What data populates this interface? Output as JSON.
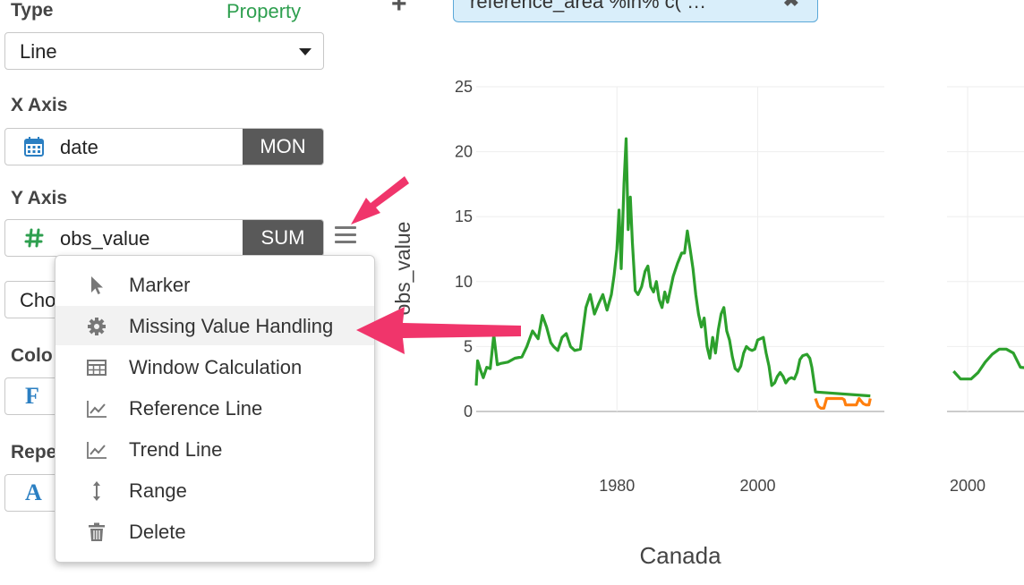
{
  "panel": {
    "type_label": "Type",
    "property_link": "Property",
    "type_value": "Line",
    "x_axis_label": "X Axis",
    "x_field": "date",
    "x_agg": "MON",
    "y_axis_label": "Y Axis",
    "y_field": "obs_value",
    "y_agg": "SUM",
    "hidden_select_text": "Cho",
    "color_label": "Colo",
    "repeat_label": "Repe"
  },
  "menu": {
    "items": [
      {
        "label": "Marker",
        "icon": "cursor-icon"
      },
      {
        "label": "Missing Value Handling",
        "icon": "gear-icon"
      },
      {
        "label": "Window Calculation",
        "icon": "table-icon"
      },
      {
        "label": "Reference Line",
        "icon": "chart-line-icon"
      },
      {
        "label": "Trend Line",
        "icon": "trend-line-icon"
      },
      {
        "label": "Range",
        "icon": "vertical-arrows-icon"
      },
      {
        "label": "Delete",
        "icon": "trash-icon"
      }
    ]
  },
  "filter_chip": {
    "text": "reference_area %in% c( …"
  },
  "colors": {
    "accent_green": "#2e9f4f",
    "series_green": "#2ca02c",
    "series_orange": "#ff7f0e",
    "callout_pink": "#f0356b",
    "agg_bg": "#595959"
  },
  "chart_data": {
    "type": "line",
    "ylabel": "obs_value",
    "facet_label": "Canada",
    "yticks": [
      0,
      5,
      10,
      15,
      20,
      25
    ],
    "xticks_left": [
      1980,
      2000
    ],
    "xticks_right": [
      2000
    ],
    "ylim": [
      0,
      25
    ],
    "xlim": [
      1960,
      2018
    ],
    "series": [
      {
        "color": "#2ca02c",
        "points": [
          [
            1960.0,
            2.0
          ],
          [
            1960.2,
            3.9
          ],
          [
            1960.6,
            3.2
          ],
          [
            1961.0,
            2.6
          ],
          [
            1961.5,
            3.4
          ],
          [
            1962.0,
            3.3
          ],
          [
            1962.5,
            5.9
          ],
          [
            1963.0,
            3.6
          ],
          [
            1963.5,
            3.7
          ],
          [
            1964.5,
            3.8
          ],
          [
            1965.5,
            4.1
          ],
          [
            1966.5,
            4.2
          ],
          [
            1967.2,
            5.0
          ],
          [
            1968.0,
            6.2
          ],
          [
            1968.8,
            5.6
          ],
          [
            1969.4,
            7.4
          ],
          [
            1970.0,
            6.5
          ],
          [
            1970.6,
            5.3
          ],
          [
            1971.0,
            5.0
          ],
          [
            1971.6,
            4.7
          ],
          [
            1972.2,
            5.7
          ],
          [
            1972.8,
            6.0
          ],
          [
            1973.4,
            5.0
          ],
          [
            1974.0,
            4.7
          ],
          [
            1974.8,
            4.8
          ],
          [
            1975.6,
            8.0
          ],
          [
            1976.2,
            9.0
          ],
          [
            1976.8,
            7.5
          ],
          [
            1977.4,
            8.3
          ],
          [
            1978.0,
            9.0
          ],
          [
            1978.6,
            7.8
          ],
          [
            1979.2,
            9.0
          ],
          [
            1979.6,
            10.5
          ],
          [
            1980.0,
            12.5
          ],
          [
            1980.3,
            15.5
          ],
          [
            1980.6,
            11.0
          ],
          [
            1981.0,
            17.5
          ],
          [
            1981.3,
            21.0
          ],
          [
            1981.6,
            14.0
          ],
          [
            1981.9,
            16.5
          ],
          [
            1982.2,
            13.0
          ],
          [
            1982.6,
            9.3
          ],
          [
            1983.0,
            9.0
          ],
          [
            1983.5,
            9.6
          ],
          [
            1984.0,
            10.8
          ],
          [
            1984.4,
            11.2
          ],
          [
            1984.8,
            9.6
          ],
          [
            1985.2,
            9.2
          ],
          [
            1985.6,
            10.0
          ],
          [
            1986.0,
            8.6
          ],
          [
            1986.4,
            8.0
          ],
          [
            1986.8,
            9.2
          ],
          [
            1987.2,
            8.4
          ],
          [
            1987.6,
            9.4
          ],
          [
            1988.0,
            10.4
          ],
          [
            1988.6,
            11.4
          ],
          [
            1989.2,
            12.2
          ],
          [
            1989.6,
            12.2
          ],
          [
            1990.0,
            13.9
          ],
          [
            1990.4,
            12.5
          ],
          [
            1990.8,
            11.0
          ],
          [
            1991.2,
            9.0
          ],
          [
            1991.6,
            7.5
          ],
          [
            1992.0,
            6.5
          ],
          [
            1992.4,
            7.2
          ],
          [
            1992.8,
            5.0
          ],
          [
            1993.2,
            4.1
          ],
          [
            1993.6,
            5.7
          ],
          [
            1994.0,
            4.5
          ],
          [
            1994.4,
            6.3
          ],
          [
            1994.8,
            7.5
          ],
          [
            1995.2,
            8.0
          ],
          [
            1995.6,
            6.2
          ],
          [
            1996.0,
            5.5
          ],
          [
            1996.4,
            4.2
          ],
          [
            1996.8,
            3.3
          ],
          [
            1997.2,
            3.1
          ],
          [
            1997.6,
            3.5
          ],
          [
            1998.0,
            4.5
          ],
          [
            1998.4,
            5.0
          ],
          [
            1998.8,
            4.8
          ],
          [
            1999.2,
            4.7
          ],
          [
            1999.6,
            4.8
          ],
          [
            2000.0,
            5.5
          ],
          [
            2000.4,
            5.6
          ],
          [
            2000.8,
            5.7
          ],
          [
            2001.2,
            4.5
          ],
          [
            2001.6,
            3.5
          ],
          [
            2002.0,
            2.0
          ],
          [
            2002.4,
            2.2
          ],
          [
            2002.8,
            2.7
          ],
          [
            2003.2,
            3.0
          ],
          [
            2003.6,
            2.7
          ],
          [
            2004.0,
            2.2
          ],
          [
            2004.4,
            2.5
          ],
          [
            2004.8,
            2.6
          ],
          [
            2005.2,
            2.5
          ],
          [
            2005.6,
            3.0
          ],
          [
            2006.0,
            4.0
          ],
          [
            2006.4,
            4.3
          ],
          [
            2007.0,
            4.4
          ],
          [
            2007.4,
            4.1
          ],
          [
            2007.7,
            3.4
          ],
          [
            2008.2,
            1.5
          ],
          [
            2016.0,
            1.2
          ]
        ]
      },
      {
        "color": "#ff7f0e",
        "points": [
          [
            2008.2,
            1.0
          ],
          [
            2008.6,
            0.4
          ],
          [
            2009.0,
            0.25
          ],
          [
            2009.4,
            0.25
          ],
          [
            2009.8,
            1.0
          ],
          [
            2012.0,
            1.0
          ],
          [
            2012.3,
            0.9
          ],
          [
            2012.5,
            0.5
          ],
          [
            2014.0,
            0.5
          ],
          [
            2014.4,
            1.0
          ],
          [
            2015.0,
            0.6
          ],
          [
            2015.4,
            0.5
          ],
          [
            2015.8,
            0.5
          ],
          [
            2016.0,
            1.0
          ]
        ]
      },
      {
        "color": "#2ca02c",
        "facet": 2,
        "points": [
          [
            1998.0,
            3.1
          ],
          [
            1999.0,
            2.5
          ],
          [
            2000.5,
            2.5
          ],
          [
            2001.5,
            3.0
          ],
          [
            2002.5,
            3.8
          ],
          [
            2003.5,
            4.4
          ],
          [
            2004.5,
            4.8
          ],
          [
            2005.5,
            4.8
          ],
          [
            2006.5,
            4.5
          ],
          [
            2007.5,
            3.4
          ],
          [
            2009.5,
            3.3
          ]
        ]
      }
    ]
  }
}
